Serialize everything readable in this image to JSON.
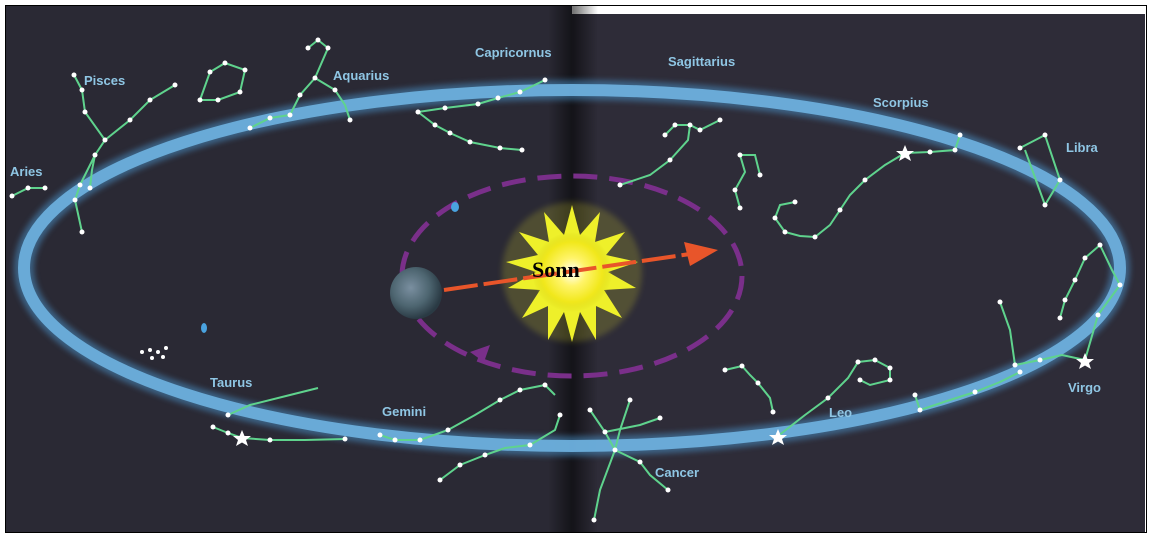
{
  "sun_label": "Sonn",
  "constellations": {
    "pisces": "Pisces",
    "aquarius": "Aquarius",
    "capricornus": "Capricornus",
    "sagittarius": "Sagittarius",
    "scorpius": "Scorpius",
    "libra": "Libra",
    "aries": "Aries",
    "virgo": "Virgo",
    "leo": "Leo",
    "cancer": "Cancer",
    "gemini": "Gemini",
    "taurus": "Taurus"
  },
  "colors": {
    "sky": "#2b2a36",
    "ecliptic_band": "#5aa2d6",
    "constellation_line": "#5fd38d",
    "label": "#8fc6e4",
    "orbit_dash": "#7a2f8a",
    "arrow": "#e8552a",
    "sun_glow": "#f7f22a"
  },
  "icons": {
    "earth": "earth-icon",
    "sun": "sun-icon",
    "arrow": "direction-arrow-icon"
  }
}
